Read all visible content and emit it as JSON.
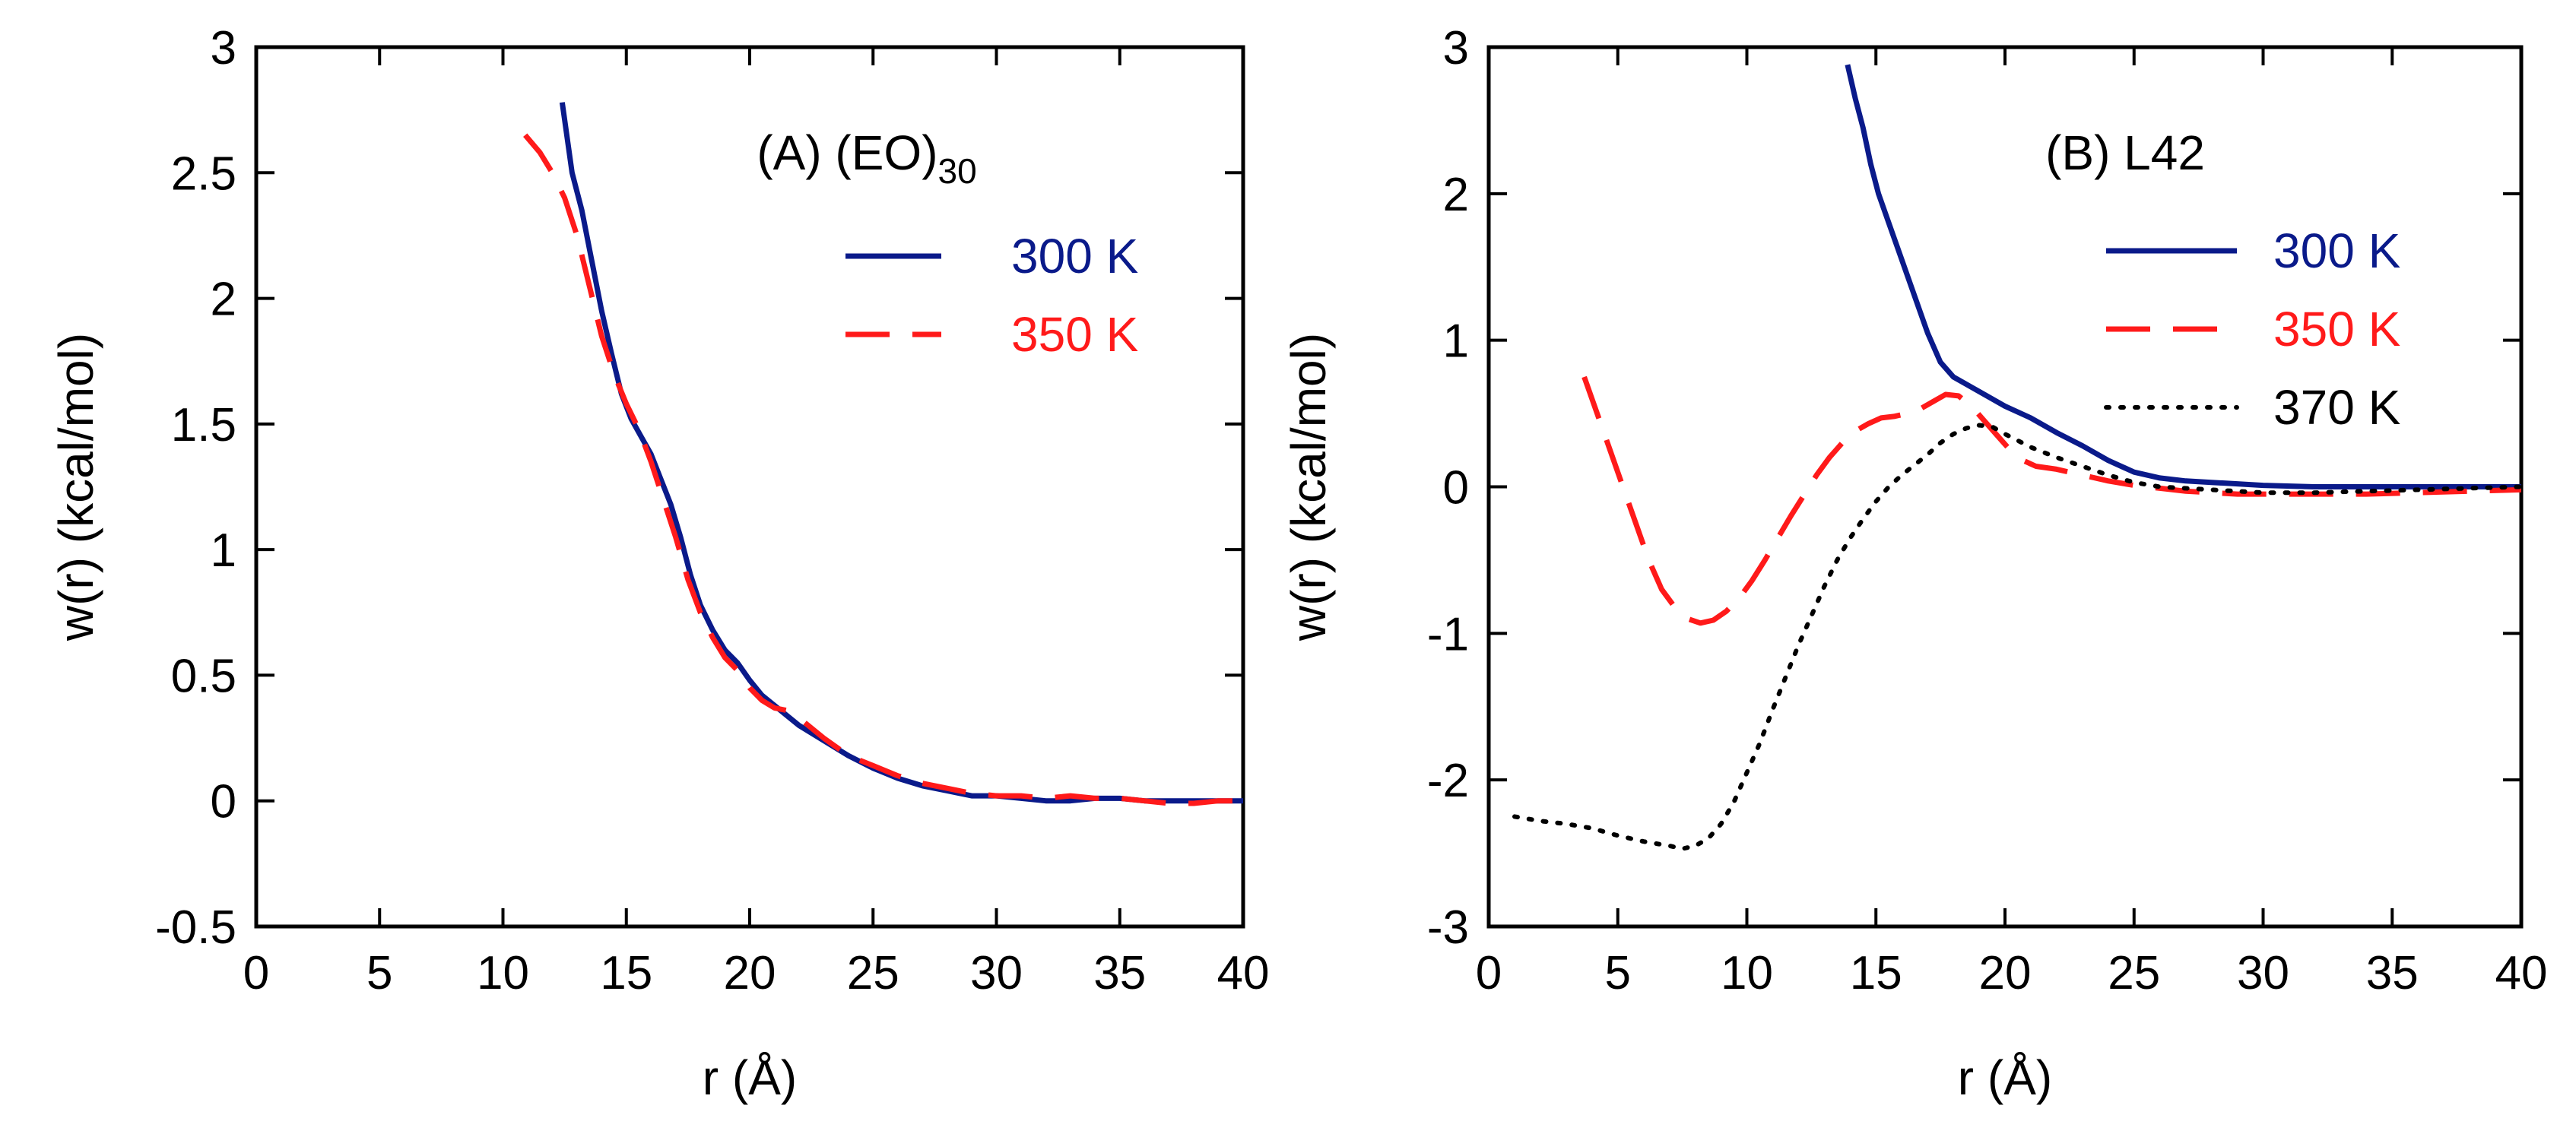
{
  "chart_data": [
    {
      "type": "line",
      "title": "(A) (EO)",
      "title_subscript": "30",
      "xlabel": "r (Å)",
      "ylabel": "w(r) (kcal/mol)",
      "xlim": [
        0,
        40
      ],
      "ylim": [
        -0.5,
        3
      ],
      "x_ticks": [
        0,
        5,
        10,
        15,
        20,
        25,
        30,
        35,
        40
      ],
      "y_ticks": [
        -0.5,
        0,
        0.5,
        1,
        1.5,
        2,
        2.5,
        3
      ],
      "x_tick_labels": [
        "0",
        "5",
        "10",
        "15",
        "20",
        "25",
        "30",
        "35",
        "40"
      ],
      "y_tick_labels": [
        "-0.5",
        "0",
        "0.5",
        "1",
        "1.5",
        "2",
        "2.5",
        "3"
      ],
      "legend_position": "top-right",
      "series": [
        {
          "name": "300 K",
          "color": "#0a1a8a",
          "dash": "solid",
          "x": [
            12.4,
            12.8,
            13.2,
            13.6,
            14.0,
            14.4,
            14.8,
            15.2,
            15.6,
            16.0,
            16.4,
            16.8,
            17.2,
            17.6,
            18.0,
            18.5,
            19.0,
            19.5,
            20.0,
            20.5,
            21.0,
            22.0,
            23.0,
            24.0,
            25.0,
            26.0,
            27.0,
            28.0,
            29.0,
            30.0,
            31.0,
            32.0,
            33.0,
            34.0,
            35.0,
            36.0,
            37.0,
            38.0,
            39.0,
            40.0
          ],
          "values": [
            2.78,
            2.5,
            2.35,
            2.15,
            1.95,
            1.78,
            1.62,
            1.52,
            1.45,
            1.38,
            1.28,
            1.18,
            1.05,
            0.9,
            0.78,
            0.68,
            0.6,
            0.55,
            0.48,
            0.42,
            0.38,
            0.3,
            0.24,
            0.18,
            0.13,
            0.09,
            0.06,
            0.04,
            0.02,
            0.02,
            0.01,
            0.0,
            0.0,
            0.01,
            0.01,
            0.0,
            0.0,
            0.0,
            0.0,
            0.0
          ]
        },
        {
          "name": "350 K",
          "color": "#ff1a1a",
          "dash": "long-dash",
          "x": [
            10.9,
            11.5,
            12.0,
            12.5,
            13.0,
            13.5,
            14.0,
            14.5,
            15.0,
            15.5,
            16.0,
            16.5,
            17.0,
            17.5,
            18.0,
            18.5,
            19.0,
            19.5,
            20.0,
            20.5,
            21.0,
            21.5,
            22.0,
            23.0,
            24.0,
            25.0,
            26.0,
            27.0,
            28.0,
            29.0,
            30.0,
            31.0,
            32.0,
            33.0,
            34.0,
            35.0,
            36.0,
            37.0,
            38.0,
            39.0,
            40.0
          ],
          "values": [
            2.65,
            2.58,
            2.5,
            2.4,
            2.25,
            2.05,
            1.85,
            1.7,
            1.58,
            1.48,
            1.35,
            1.2,
            1.05,
            0.88,
            0.75,
            0.65,
            0.57,
            0.52,
            0.45,
            0.4,
            0.37,
            0.36,
            0.33,
            0.25,
            0.18,
            0.14,
            0.1,
            0.07,
            0.05,
            0.03,
            0.02,
            0.02,
            0.01,
            0.02,
            0.01,
            0.01,
            0.0,
            -0.01,
            -0.01,
            0.0,
            0.0
          ]
        }
      ]
    },
    {
      "type": "line",
      "title": "(B) L42",
      "xlabel": "r (Å)",
      "ylabel": "w(r) (kcal/mol)",
      "xlim": [
        0,
        40
      ],
      "ylim": [
        -3,
        3
      ],
      "x_ticks": [
        0,
        5,
        10,
        15,
        20,
        25,
        30,
        35,
        40
      ],
      "y_ticks": [
        -3,
        -2,
        -1,
        0,
        1,
        2,
        3
      ],
      "x_tick_labels": [
        "0",
        "5",
        "10",
        "15",
        "20",
        "25",
        "30",
        "35",
        "40"
      ],
      "y_tick_labels": [
        "-3",
        "-2",
        "-1",
        "0",
        "1",
        "2",
        "3"
      ],
      "legend_position": "top-right",
      "series": [
        {
          "name": "300 K",
          "color": "#0a1a8a",
          "dash": "solid",
          "x": [
            13.9,
            14.2,
            14.5,
            14.8,
            15.1,
            15.5,
            16.0,
            16.5,
            17.0,
            17.5,
            18.0,
            19.0,
            20.0,
            21.0,
            22.0,
            23.0,
            24.0,
            25.0,
            26.0,
            27.0,
            28.0,
            29.0,
            30.0,
            32.0,
            34.0,
            36.0,
            38.0,
            40.0
          ],
          "values": [
            2.88,
            2.65,
            2.45,
            2.2,
            2.0,
            1.8,
            1.55,
            1.3,
            1.05,
            0.85,
            0.75,
            0.65,
            0.55,
            0.47,
            0.37,
            0.28,
            0.18,
            0.1,
            0.06,
            0.04,
            0.03,
            0.02,
            0.01,
            0.0,
            0.0,
            0.0,
            0.0,
            0.0
          ]
        },
        {
          "name": "350 K",
          "color": "#ff1a1a",
          "dash": "long-dash",
          "x": [
            3.7,
            4.2,
            4.7,
            5.2,
            5.7,
            6.2,
            6.7,
            7.2,
            7.7,
            8.2,
            8.7,
            9.2,
            9.7,
            10.2,
            10.7,
            11.2,
            11.7,
            12.2,
            12.7,
            13.2,
            13.7,
            14.2,
            14.7,
            15.2,
            15.7,
            16.2,
            16.7,
            17.2,
            17.7,
            18.2,
            18.7,
            19.2,
            19.7,
            20.2,
            20.7,
            21.2,
            22.0,
            23.0,
            24.0,
            25.0,
            26.0,
            27.0,
            28.0,
            29.0,
            30.0,
            32.0,
            34.0,
            36.0,
            38.0,
            40.0
          ],
          "values": [
            0.75,
            0.5,
            0.25,
            0.0,
            -0.25,
            -0.5,
            -0.7,
            -0.82,
            -0.9,
            -0.93,
            -0.91,
            -0.85,
            -0.76,
            -0.64,
            -0.5,
            -0.35,
            -0.2,
            -0.06,
            0.08,
            0.2,
            0.3,
            0.38,
            0.43,
            0.47,
            0.48,
            0.5,
            0.53,
            0.58,
            0.63,
            0.62,
            0.55,
            0.45,
            0.35,
            0.25,
            0.18,
            0.14,
            0.12,
            0.08,
            0.04,
            0.01,
            -0.01,
            -0.03,
            -0.04,
            -0.05,
            -0.05,
            -0.05,
            -0.05,
            -0.04,
            -0.03,
            -0.02
          ]
        },
        {
          "name": "370 K",
          "color": "#000000",
          "dash": "dotted",
          "x": [
            1.0,
            2.0,
            3.0,
            4.0,
            5.0,
            6.0,
            7.0,
            7.5,
            8.0,
            8.5,
            9.0,
            9.5,
            10.0,
            10.5,
            11.0,
            11.5,
            12.0,
            12.5,
            13.0,
            13.5,
            14.0,
            14.5,
            15.0,
            15.5,
            16.0,
            16.5,
            17.0,
            17.5,
            18.0,
            18.5,
            19.0,
            19.5,
            20.0,
            21.0,
            22.0,
            23.0,
            24.0,
            25.0,
            26.0,
            28.0,
            30.0,
            32.0,
            34.0,
            36.0,
            38.0,
            40.0
          ],
          "values": [
            -2.25,
            -2.28,
            -2.3,
            -2.33,
            -2.38,
            -2.42,
            -2.45,
            -2.47,
            -2.45,
            -2.4,
            -2.3,
            -2.15,
            -1.95,
            -1.75,
            -1.52,
            -1.3,
            -1.08,
            -0.88,
            -0.68,
            -0.5,
            -0.35,
            -0.22,
            -0.1,
            0.0,
            0.08,
            0.15,
            0.22,
            0.3,
            0.36,
            0.4,
            0.42,
            0.41,
            0.36,
            0.27,
            0.2,
            0.14,
            0.08,
            0.03,
            0.0,
            -0.02,
            -0.04,
            -0.04,
            -0.03,
            -0.02,
            -0.01,
            0.0
          ]
        }
      ]
    }
  ]
}
